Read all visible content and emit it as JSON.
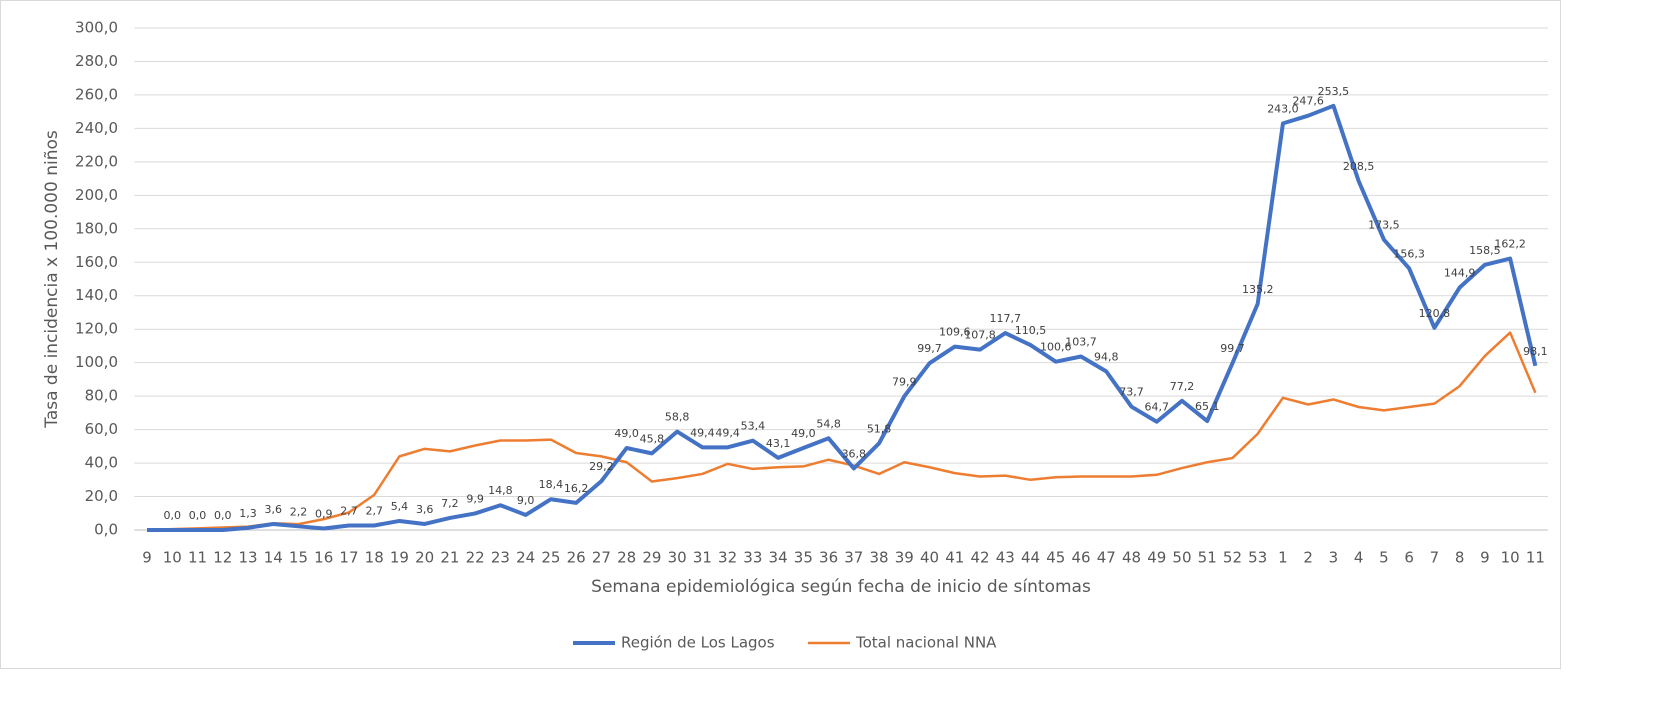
{
  "chart_data": {
    "type": "line",
    "x_label": "Semana epidemiológica según fecha de inicio de síntomas",
    "y_label": "Tasa de incidencia x 100.000 niños",
    "categories": [
      "9",
      "10",
      "11",
      "12",
      "13",
      "14",
      "15",
      "16",
      "17",
      "18",
      "19",
      "20",
      "21",
      "22",
      "23",
      "24",
      "25",
      "26",
      "27",
      "28",
      "29",
      "30",
      "31",
      "32",
      "33",
      "34",
      "35",
      "36",
      "37",
      "38",
      "39",
      "40",
      "41",
      "42",
      "43",
      "44",
      "45",
      "46",
      "47",
      "48",
      "49",
      "50",
      "51",
      "52",
      "53",
      "1",
      "2",
      "3",
      "4",
      "5",
      "6",
      "7",
      "8",
      "9",
      "10",
      "11"
    ],
    "series": [
      {
        "name": "Región de Los Lagos",
        "color": "#4472c4",
        "values": [
          0,
          0,
          0,
          0,
          1.3,
          3.6,
          2.2,
          0.9,
          2.7,
          2.7,
          5.4,
          3.6,
          7.2,
          9.9,
          14.8,
          9.0,
          18.4,
          16.2,
          29.2,
          49.0,
          45.8,
          58.8,
          49.4,
          49.4,
          53.4,
          43.1,
          49.0,
          54.8,
          36.8,
          51.8,
          79.9,
          99.7,
          109.6,
          107.8,
          117.7,
          110.5,
          100.6,
          103.7,
          94.8,
          73.7,
          64.7,
          77.2,
          65.1,
          99.7,
          135.2,
          243.0,
          247.6,
          253.5,
          208.5,
          173.5,
          156.3,
          120.8,
          144.9,
          158.5,
          162.2,
          98.1
        ],
        "value_labels": [
          null,
          "0,0",
          "0,0",
          "0,0",
          "1,3",
          "3,6",
          "2,2",
          "0,9",
          "2,7",
          "2,7",
          "5,4",
          "3,6",
          "7,2",
          "9,9",
          "14,8",
          "9,0",
          "18,4",
          "16,2",
          "29,2",
          "49,0",
          "45,8",
          "58,8",
          "49,4",
          "49,4",
          "53,4",
          "43,1",
          "49,0",
          "54,8",
          "36,8",
          "51,8",
          "79,9",
          "99,7",
          "109,6",
          "107,8",
          "117,7",
          "110,5",
          "100,6",
          "103,7",
          "94,8",
          "73,7",
          "64,7",
          "77,2",
          "65,1",
          "99,7",
          "135,2",
          "243,0",
          "247,6",
          "253,5",
          "208,5",
          "173,5",
          "156,3",
          "120,8",
          "144,9",
          "158,5",
          "162,2",
          "98,1"
        ]
      },
      {
        "name": "Total nacional NNA",
        "color": "#ed7d31",
        "values": [
          0,
          0.5,
          1,
          1.5,
          2,
          4,
          3.5,
          6.5,
          10.5,
          21,
          44,
          48.5,
          47,
          50.5,
          53.5,
          53.5,
          54,
          46,
          44,
          40.5,
          29,
          31,
          33.5,
          39.5,
          36.5,
          37.5,
          38,
          42,
          38.5,
          33.5,
          40.5,
          37.5,
          34,
          32,
          32.5,
          30,
          31.5,
          32,
          32,
          32,
          33,
          37,
          40.5,
          43,
          57.5,
          79,
          75,
          78,
          73.5,
          71.5,
          73.5,
          75.5,
          86,
          104,
          118,
          82
        ]
      }
    ],
    "ylim": [
      0,
      300
    ],
    "yticks": [
      {
        "value": 0,
        "label": "0,0"
      },
      {
        "value": 20,
        "label": "20,0"
      },
      {
        "value": 40,
        "label": "40,0"
      },
      {
        "value": 60,
        "label": "60,0"
      },
      {
        "value": 80,
        "label": "80,0"
      },
      {
        "value": 100,
        "label": "100,0"
      },
      {
        "value": 120,
        "label": "120,0"
      },
      {
        "value": 140,
        "label": "140,0"
      },
      {
        "value": 160,
        "label": "160,0"
      },
      {
        "value": 180,
        "label": "180,0"
      },
      {
        "value": 200,
        "label": "200,0"
      },
      {
        "value": 220,
        "label": "220,0"
      },
      {
        "value": 240,
        "label": "240,0"
      },
      {
        "value": 260,
        "label": "260,0"
      },
      {
        "value": 280,
        "label": "280,0"
      },
      {
        "value": 300,
        "label": "300,0"
      }
    ],
    "grid": true,
    "legend": "bottom"
  }
}
